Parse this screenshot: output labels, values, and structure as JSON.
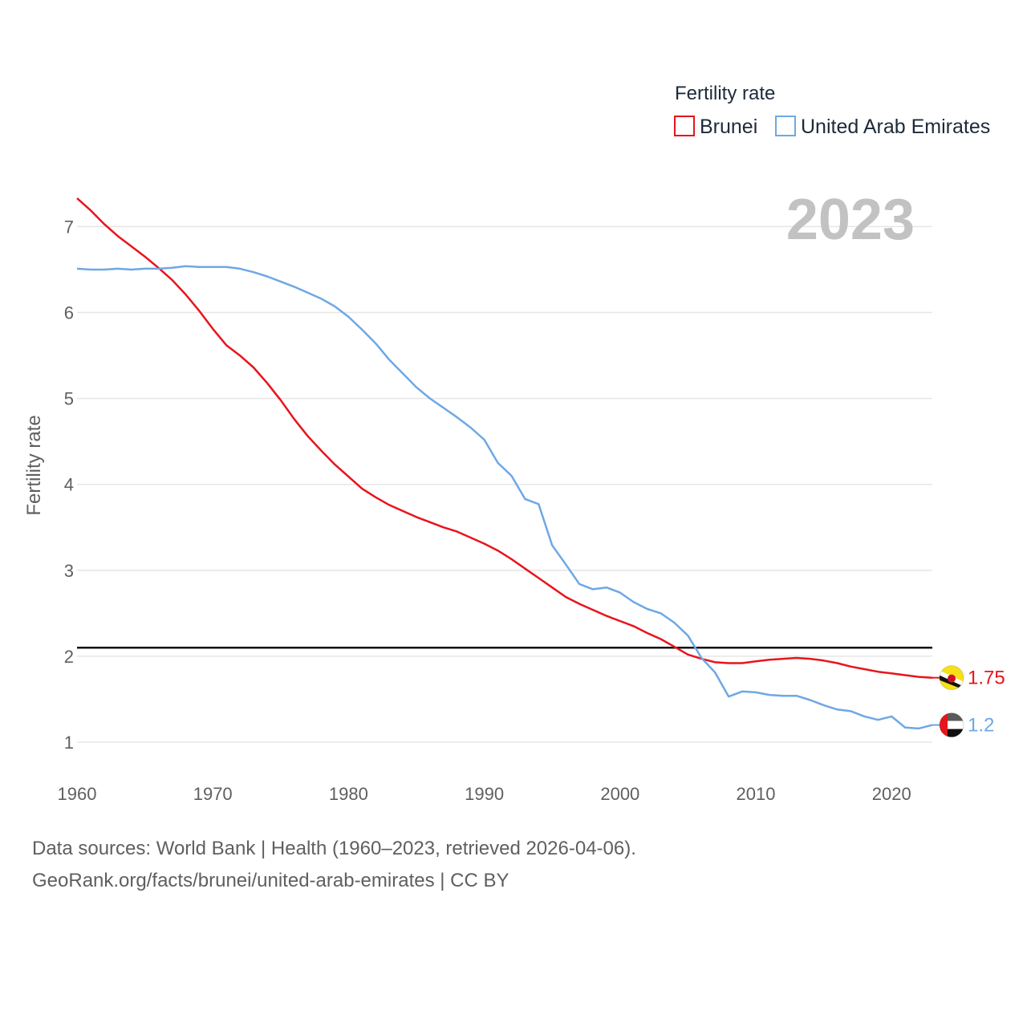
{
  "chart_data": {
    "type": "line",
    "title": "",
    "ylabel": "Fertility rate",
    "xlabel": "",
    "xlim": [
      1960,
      2023
    ],
    "ylim": [
      0.6,
      7.6
    ],
    "xticks": [
      1960,
      1970,
      1980,
      1990,
      2000,
      2010,
      2020
    ],
    "yticks": [
      1,
      2,
      3,
      4,
      5,
      6,
      7
    ],
    "reference_line": 2.1,
    "year_label": "2023",
    "legend": {
      "title": "Fertility rate",
      "placement": "top-right"
    },
    "series": [
      {
        "name": "Brunei",
        "color": "#e8141c",
        "end_label": "1.75",
        "flag": "brunei-flag",
        "x": [
          1960,
          1961,
          1962,
          1963,
          1964,
          1965,
          1966,
          1967,
          1968,
          1969,
          1970,
          1971,
          1972,
          1973,
          1974,
          1975,
          1976,
          1977,
          1978,
          1979,
          1980,
          1981,
          1982,
          1983,
          1984,
          1985,
          1986,
          1987,
          1988,
          1989,
          1990,
          1991,
          1992,
          1993,
          1994,
          1995,
          1996,
          1997,
          1998,
          1999,
          2000,
          2001,
          2002,
          2003,
          2004,
          2005,
          2006,
          2007,
          2008,
          2009,
          2010,
          2011,
          2012,
          2013,
          2014,
          2015,
          2016,
          2017,
          2018,
          2019,
          2020,
          2021,
          2022,
          2023
        ],
        "values": [
          7.33,
          7.19,
          7.03,
          6.89,
          6.77,
          6.65,
          6.52,
          6.38,
          6.21,
          6.02,
          5.81,
          5.62,
          5.5,
          5.36,
          5.18,
          4.98,
          4.76,
          4.56,
          4.39,
          4.23,
          4.09,
          3.95,
          3.85,
          3.76,
          3.69,
          3.62,
          3.56,
          3.5,
          3.45,
          3.38,
          3.31,
          3.23,
          3.13,
          3.02,
          2.91,
          2.8,
          2.69,
          2.61,
          2.54,
          2.47,
          2.41,
          2.35,
          2.27,
          2.2,
          2.11,
          2.02,
          1.97,
          1.93,
          1.92,
          1.92,
          1.94,
          1.96,
          1.97,
          1.98,
          1.97,
          1.95,
          1.92,
          1.88,
          1.85,
          1.82,
          1.8,
          1.78,
          1.76,
          1.75
        ]
      },
      {
        "name": "United Arab Emirates",
        "color": "#6ea8e4",
        "end_label": "1.2",
        "flag": "uae-flag",
        "x": [
          1960,
          1961,
          1962,
          1963,
          1964,
          1965,
          1966,
          1967,
          1968,
          1969,
          1970,
          1971,
          1972,
          1973,
          1974,
          1975,
          1976,
          1977,
          1978,
          1979,
          1980,
          1981,
          1982,
          1983,
          1984,
          1985,
          1986,
          1987,
          1988,
          1989,
          1990,
          1991,
          1992,
          1993,
          1994,
          1995,
          1996,
          1997,
          1998,
          1999,
          2000,
          2001,
          2002,
          2003,
          2004,
          2005,
          2006,
          2007,
          2008,
          2009,
          2010,
          2011,
          2012,
          2013,
          2014,
          2015,
          2016,
          2017,
          2018,
          2019,
          2020,
          2021,
          2022,
          2023
        ],
        "values": [
          6.51,
          6.5,
          6.5,
          6.51,
          6.5,
          6.51,
          6.51,
          6.52,
          6.54,
          6.53,
          6.53,
          6.53,
          6.51,
          6.47,
          6.42,
          6.36,
          6.3,
          6.23,
          6.16,
          6.07,
          5.95,
          5.8,
          5.64,
          5.45,
          5.29,
          5.13,
          5.0,
          4.89,
          4.78,
          4.66,
          4.52,
          4.25,
          4.1,
          3.83,
          3.77,
          3.29,
          3.07,
          2.84,
          2.78,
          2.8,
          2.74,
          2.63,
          2.55,
          2.5,
          2.39,
          2.24,
          1.98,
          1.81,
          1.53,
          1.59,
          1.58,
          1.55,
          1.54,
          1.54,
          1.49,
          1.43,
          1.38,
          1.36,
          1.3,
          1.26,
          1.3,
          1.17,
          1.16,
          1.2
        ]
      }
    ]
  },
  "footer": {
    "line1": "Data sources: World Bank | Health (1960–2023, retrieved 2026-04-06).",
    "line2": "GeoRank.org/facts/brunei/united-arab-emirates | CC BY"
  }
}
